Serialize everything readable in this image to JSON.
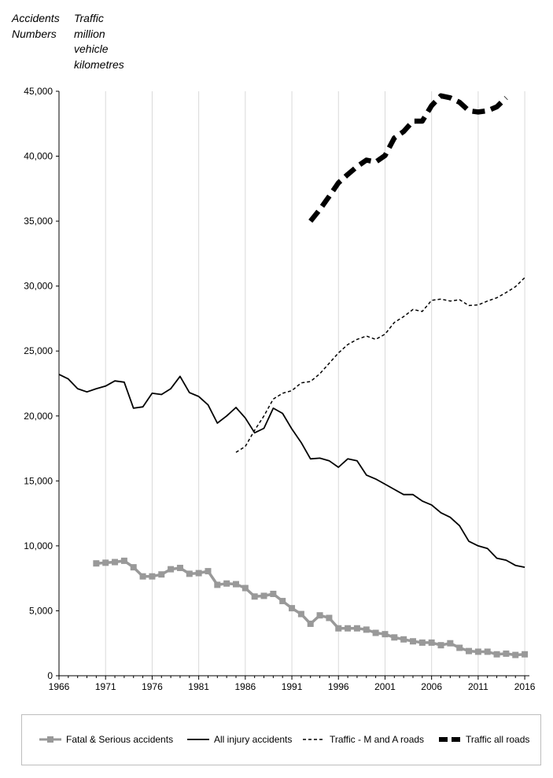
{
  "header": {
    "left_label_lines": [
      "Accidents",
      "Numbers"
    ],
    "right_label_lines": [
      "Traffic",
      "million",
      "vehicle",
      "kilometres"
    ]
  },
  "chart_data": {
    "type": "line",
    "x_ticks": [
      1966,
      1971,
      1976,
      1981,
      1986,
      1991,
      1996,
      2001,
      2006,
      2011,
      2016
    ],
    "x_range": [
      1966,
      2016.5
    ],
    "ylim": [
      0,
      45000
    ],
    "y_ticks": [
      0,
      5000,
      10000,
      15000,
      20000,
      25000,
      30000,
      35000,
      40000,
      45000
    ],
    "y_tick_labels": [
      "0",
      "5,000",
      "10,000",
      "15,000",
      "20,000",
      "25,000",
      "30,000",
      "35,000",
      "40,000",
      "45,000"
    ],
    "grid": "vertical",
    "legend_position": "bottom",
    "series": [
      {
        "name": "Fatal & Serious accidents",
        "color": "#999999",
        "style": "solid-square-markers",
        "x": [
          1970,
          1971,
          1972,
          1973,
          1974,
          1975,
          1976,
          1977,
          1978,
          1979,
          1980,
          1981,
          1982,
          1983,
          1984,
          1985,
          1986,
          1987,
          1988,
          1989,
          1990,
          1991,
          1992,
          1993,
          1994,
          1995,
          1996,
          1997,
          1998,
          1999,
          2000,
          2001,
          2002,
          2003,
          2004,
          2005,
          2006,
          2007,
          2008,
          2009,
          2010,
          2011,
          2012,
          2013,
          2014,
          2015,
          2016
        ],
        "y": [
          8650,
          8700,
          8750,
          8850,
          8350,
          7650,
          7650,
          7800,
          8200,
          8300,
          7850,
          7900,
          8050,
          7000,
          7100,
          7050,
          6750,
          6100,
          6150,
          6300,
          5750,
          5200,
          4750,
          4000,
          4650,
          4450,
          3650,
          3650,
          3650,
          3550,
          3300,
          3200,
          2950,
          2800,
          2650,
          2550,
          2550,
          2350,
          2500,
          2150,
          1900,
          1850,
          1850,
          1650,
          1700,
          1600,
          1650
        ]
      },
      {
        "name": "All injury accidents",
        "color": "#000000",
        "style": "solid",
        "x": [
          1966,
          1967,
          1968,
          1969,
          1970,
          1971,
          1972,
          1973,
          1974,
          1975,
          1976,
          1977,
          1978,
          1979,
          1980,
          1981,
          1982,
          1983,
          1984,
          1985,
          1986,
          1987,
          1988,
          1989,
          1990,
          1991,
          1992,
          1993,
          1994,
          1995,
          1996,
          1997,
          1998,
          1999,
          2000,
          2001,
          2002,
          2003,
          2004,
          2005,
          2006,
          2007,
          2008,
          2009,
          2010,
          2011,
          2012,
          2013,
          2014,
          2015,
          2016
        ],
        "y": [
          23200,
          22850,
          22100,
          21850,
          22100,
          22300,
          22700,
          22600,
          20600,
          20700,
          21750,
          21650,
          22100,
          23050,
          21800,
          21500,
          20850,
          19450,
          20000,
          20650,
          19850,
          18700,
          19050,
          20600,
          20200,
          19000,
          17950,
          16700,
          16750,
          16550,
          16050,
          16700,
          16550,
          15450,
          15150,
          14750,
          14350,
          13950,
          13950,
          13450,
          13150,
          12550,
          12200,
          11550,
          10350,
          10000,
          9800,
          9050,
          8900,
          8500,
          8350
        ]
      },
      {
        "name": "Traffic - M and A roads",
        "color": "#000000",
        "style": "dashed",
        "x": [
          1985,
          1986,
          1987,
          1988,
          1989,
          1990,
          1991,
          1992,
          1993,
          1994,
          1995,
          1996,
          1997,
          1998,
          1999,
          2000,
          2001,
          2002,
          2003,
          2004,
          2005,
          2006,
          2007,
          2008,
          2009,
          2010,
          2011,
          2012,
          2013,
          2014,
          2015,
          2016
        ],
        "y": [
          17200,
          17650,
          18900,
          20000,
          21300,
          21750,
          21950,
          22550,
          22650,
          23250,
          24050,
          24850,
          25500,
          25900,
          26150,
          25900,
          26300,
          27200,
          27650,
          28200,
          28050,
          28900,
          29000,
          28850,
          28950,
          28500,
          28550,
          28850,
          29100,
          29500,
          29950,
          30650
        ]
      },
      {
        "name": "Traffic all roads",
        "color": "#000000",
        "style": "heavy-dashed",
        "x": [
          1993,
          1994,
          1995,
          1996,
          1997,
          1998,
          1999,
          2000,
          2001,
          2002,
          2003,
          2004,
          2005,
          2006,
          2007,
          2008,
          2009,
          2010,
          2011,
          2012,
          2013,
          2014
        ],
        "y": [
          35000,
          35900,
          36900,
          37950,
          38600,
          39200,
          39700,
          39550,
          40050,
          41400,
          41900,
          42700,
          42700,
          43900,
          44650,
          44500,
          44150,
          43500,
          43400,
          43500,
          43800,
          44500
        ]
      }
    ]
  }
}
